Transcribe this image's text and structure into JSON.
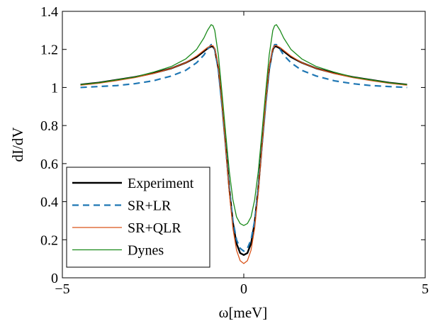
{
  "chart_data": {
    "type": "line",
    "title": "",
    "xlabel": "ω[meV]",
    "ylabel": "dI/dV",
    "xlim": [
      -5,
      5
    ],
    "ylim": [
      0,
      1.4
    ],
    "x_ticks": [
      -5,
      0,
      5
    ],
    "x_tick_labels": [
      "−5",
      "0",
      "5"
    ],
    "y_ticks": [
      0,
      0.2,
      0.4,
      0.6,
      0.8,
      1,
      1.2,
      1.4
    ],
    "y_tick_labels": [
      "0",
      "0.2",
      "0.4",
      "0.6",
      "0.8",
      "1",
      "1.2",
      "1.4"
    ],
    "grid": false,
    "legend_position": "bottom-left",
    "series": [
      {
        "name": "Experiment",
        "color": "#000000",
        "dash": "solid",
        "x": [
          -4.5,
          -4.0,
          -3.5,
          -3.0,
          -2.5,
          -2.0,
          -1.6,
          -1.3,
          -1.1,
          -1.0,
          -0.9,
          -0.85,
          -0.8,
          -0.7,
          -0.6,
          -0.5,
          -0.4,
          -0.3,
          -0.2,
          -0.1,
          0.0,
          0.1,
          0.2,
          0.3,
          0.4,
          0.5,
          0.6,
          0.7,
          0.8,
          0.85,
          0.9,
          1.0,
          1.1,
          1.3,
          1.6,
          2.0,
          2.5,
          3.0,
          3.5,
          4.0,
          4.5
        ],
        "y": [
          1.015,
          1.025,
          1.04,
          1.055,
          1.075,
          1.1,
          1.13,
          1.16,
          1.19,
          1.205,
          1.215,
          1.215,
          1.2,
          1.1,
          0.92,
          0.7,
          0.47,
          0.29,
          0.18,
          0.13,
          0.12,
          0.13,
          0.18,
          0.29,
          0.47,
          0.7,
          0.92,
          1.1,
          1.2,
          1.215,
          1.215,
          1.205,
          1.19,
          1.16,
          1.13,
          1.1,
          1.075,
          1.055,
          1.04,
          1.025,
          1.015
        ]
      },
      {
        "name": "SR+LR",
        "color": "#1f77b4",
        "dash": "dashed",
        "x": [
          -4.5,
          -4.0,
          -3.5,
          -3.0,
          -2.5,
          -2.0,
          -1.6,
          -1.3,
          -1.1,
          -1.0,
          -0.9,
          -0.85,
          -0.8,
          -0.7,
          -0.6,
          -0.5,
          -0.4,
          -0.3,
          -0.2,
          -0.1,
          0.0,
          0.1,
          0.2,
          0.3,
          0.4,
          0.5,
          0.6,
          0.7,
          0.8,
          0.85,
          0.9,
          1.0,
          1.1,
          1.3,
          1.6,
          2.0,
          2.5,
          3.0,
          3.5,
          4.0,
          4.5
        ],
        "y": [
          1.0,
          1.005,
          1.01,
          1.02,
          1.035,
          1.06,
          1.09,
          1.13,
          1.17,
          1.2,
          1.225,
          1.225,
          1.2,
          1.09,
          0.9,
          0.69,
          0.47,
          0.3,
          0.2,
          0.155,
          0.14,
          0.155,
          0.2,
          0.3,
          0.47,
          0.69,
          0.9,
          1.09,
          1.2,
          1.225,
          1.225,
          1.2,
          1.17,
          1.13,
          1.09,
          1.06,
          1.035,
          1.02,
          1.01,
          1.005,
          1.0
        ]
      },
      {
        "name": "SR+QLR",
        "color": "#d95319",
        "dash": "solid",
        "x": [
          -4.5,
          -4.0,
          -3.5,
          -3.0,
          -2.5,
          -2.0,
          -1.6,
          -1.3,
          -1.1,
          -1.0,
          -0.9,
          -0.85,
          -0.8,
          -0.7,
          -0.6,
          -0.5,
          -0.4,
          -0.3,
          -0.2,
          -0.1,
          0.0,
          0.1,
          0.2,
          0.3,
          0.4,
          0.5,
          0.6,
          0.7,
          0.8,
          0.85,
          0.9,
          1.0,
          1.1,
          1.3,
          1.6,
          2.0,
          2.5,
          3.0,
          3.5,
          4.0,
          4.5
        ],
        "y": [
          1.012,
          1.022,
          1.036,
          1.052,
          1.073,
          1.1,
          1.13,
          1.165,
          1.195,
          1.21,
          1.22,
          1.22,
          1.205,
          1.11,
          0.92,
          0.69,
          0.45,
          0.26,
          0.145,
          0.09,
          0.075,
          0.09,
          0.145,
          0.26,
          0.45,
          0.69,
          0.92,
          1.11,
          1.205,
          1.22,
          1.22,
          1.21,
          1.195,
          1.165,
          1.13,
          1.1,
          1.073,
          1.052,
          1.036,
          1.022,
          1.012
        ]
      },
      {
        "name": "Dynes",
        "color": "#1a8a1a",
        "dash": "solid",
        "x": [
          -4.5,
          -4.0,
          -3.5,
          -3.0,
          -2.5,
          -2.0,
          -1.6,
          -1.3,
          -1.1,
          -1.0,
          -0.9,
          -0.85,
          -0.8,
          -0.7,
          -0.6,
          -0.5,
          -0.4,
          -0.3,
          -0.2,
          -0.1,
          0.0,
          0.1,
          0.2,
          0.3,
          0.4,
          0.5,
          0.6,
          0.7,
          0.8,
          0.85,
          0.9,
          1.0,
          1.1,
          1.3,
          1.6,
          2.0,
          2.5,
          3.0,
          3.5,
          4.0,
          4.5
        ],
        "y": [
          1.015,
          1.025,
          1.04,
          1.055,
          1.08,
          1.11,
          1.15,
          1.2,
          1.26,
          1.3,
          1.33,
          1.325,
          1.3,
          1.17,
          0.97,
          0.76,
          0.56,
          0.41,
          0.32,
          0.285,
          0.275,
          0.285,
          0.32,
          0.41,
          0.56,
          0.76,
          0.97,
          1.17,
          1.3,
          1.325,
          1.33,
          1.3,
          1.26,
          1.2,
          1.15,
          1.11,
          1.08,
          1.055,
          1.04,
          1.025,
          1.015
        ]
      }
    ]
  }
}
